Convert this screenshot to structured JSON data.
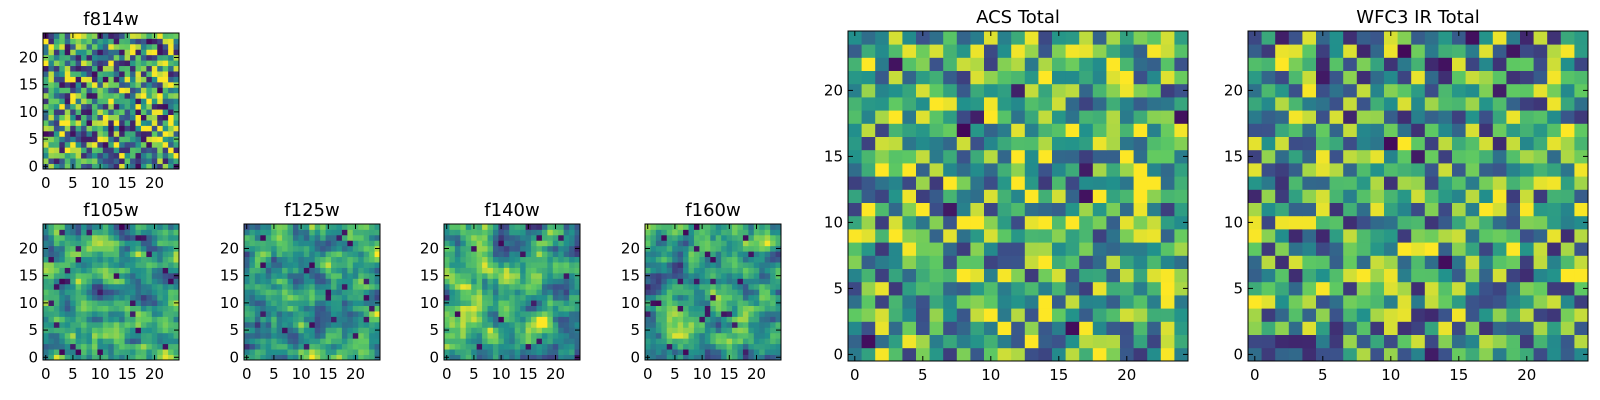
{
  "figure": {
    "colormap": "viridis",
    "colormap_stops": [
      "#440154",
      "#3b528b",
      "#21918c",
      "#5ec962",
      "#fde725"
    ],
    "background": "#ffffff",
    "frame_color": "#000000"
  },
  "chart_data": [
    {
      "id": "f814w",
      "type": "heatmap",
      "title": "f814w",
      "grid": [
        25,
        25
      ],
      "xlim": [
        -0.5,
        24.5
      ],
      "ylim": [
        -0.5,
        24.5
      ],
      "xticks": [
        0,
        5,
        10,
        15,
        20
      ],
      "yticks": [
        0,
        5,
        10,
        15,
        20
      ],
      "xticklabels": [
        "0",
        "5",
        "10",
        "15",
        "20"
      ],
      "yticklabels": [
        "0",
        "5",
        "10",
        "15",
        "20"
      ],
      "seed": 17,
      "smooth": 0,
      "bias": 0.56,
      "spread": 1.0,
      "dark_fraction": 0.05
    },
    {
      "id": "f105w",
      "type": "heatmap",
      "title": "f105w",
      "grid": [
        25,
        25
      ],
      "xlim": [
        -0.5,
        24.5
      ],
      "ylim": [
        -0.5,
        24.5
      ],
      "xticks": [
        0,
        5,
        10,
        15,
        20
      ],
      "yticks": [
        0,
        5,
        10,
        15,
        20
      ],
      "xticklabels": [
        "0",
        "5",
        "10",
        "15",
        "20"
      ],
      "yticklabels": [
        "0",
        "5",
        "10",
        "15",
        "20"
      ],
      "seed": 29,
      "smooth": 1,
      "bias": 0.56,
      "spread": 1.6,
      "dark_fraction": 0.03
    },
    {
      "id": "f125w",
      "type": "heatmap",
      "title": "f125w",
      "grid": [
        25,
        25
      ],
      "xlim": [
        -0.5,
        24.5
      ],
      "ylim": [
        -0.5,
        24.5
      ],
      "xticks": [
        0,
        5,
        10,
        15,
        20
      ],
      "yticks": [
        0,
        5,
        10,
        15,
        20
      ],
      "xticklabels": [
        "0",
        "5",
        "10",
        "15",
        "20"
      ],
      "yticklabels": [
        "0",
        "5",
        "10",
        "15",
        "20"
      ],
      "seed": 41,
      "smooth": 1,
      "bias": 0.54,
      "spread": 1.6,
      "dark_fraction": 0.03
    },
    {
      "id": "f140w",
      "type": "heatmap",
      "title": "f140w",
      "grid": [
        25,
        25
      ],
      "xlim": [
        -0.5,
        24.5
      ],
      "ylim": [
        -0.5,
        24.5
      ],
      "xticks": [
        0,
        5,
        10,
        15,
        20
      ],
      "yticks": [
        0,
        5,
        10,
        15,
        20
      ],
      "xticklabels": [
        "0",
        "5",
        "10",
        "15",
        "20"
      ],
      "yticklabels": [
        "0",
        "5",
        "10",
        "15",
        "20"
      ],
      "seed": 53,
      "smooth": 1,
      "bias": 0.6,
      "spread": 1.6,
      "dark_fraction": 0.03
    },
    {
      "id": "f160w",
      "type": "heatmap",
      "title": "f160w",
      "grid": [
        25,
        25
      ],
      "xlim": [
        -0.5,
        24.5
      ],
      "ylim": [
        -0.5,
        24.5
      ],
      "xticks": [
        0,
        5,
        10,
        15,
        20
      ],
      "yticks": [
        0,
        5,
        10,
        15,
        20
      ],
      "xticklabels": [
        "0",
        "5",
        "10",
        "15",
        "20"
      ],
      "yticklabels": [
        "0",
        "5",
        "10",
        "15",
        "20"
      ],
      "seed": 67,
      "smooth": 1,
      "bias": 0.58,
      "spread": 1.6,
      "dark_fraction": 0.03
    },
    {
      "id": "acs-total",
      "type": "heatmap",
      "title": "ACS Total",
      "grid": [
        25,
        25
      ],
      "xlim": [
        -0.5,
        24.5
      ],
      "ylim": [
        -0.5,
        24.5
      ],
      "xticks": [
        0,
        5,
        10,
        15,
        20
      ],
      "yticks": [
        0,
        5,
        10,
        15,
        20
      ],
      "xticklabels": [
        "0",
        "5",
        "10",
        "15",
        "20"
      ],
      "yticklabels": [
        "0",
        "5",
        "10",
        "15",
        "20"
      ],
      "seed": 79,
      "smooth": 0,
      "bias": 0.62,
      "spread": 0.9,
      "dark_fraction": 0.025
    },
    {
      "id": "wfc3-ir-total",
      "type": "heatmap",
      "title": "WFC3 IR Total",
      "grid": [
        25,
        25
      ],
      "xlim": [
        -0.5,
        24.5
      ],
      "ylim": [
        -0.5,
        24.5
      ],
      "xticks": [
        0,
        5,
        10,
        15,
        20
      ],
      "yticks": [
        0,
        5,
        10,
        15,
        20
      ],
      "xticklabels": [
        "0",
        "5",
        "10",
        "15",
        "20"
      ],
      "yticklabels": [
        "0",
        "5",
        "10",
        "15",
        "20"
      ],
      "seed": 97,
      "smooth": 0,
      "bias": 0.56,
      "spread": 0.9,
      "dark_fraction": 0.025
    }
  ]
}
